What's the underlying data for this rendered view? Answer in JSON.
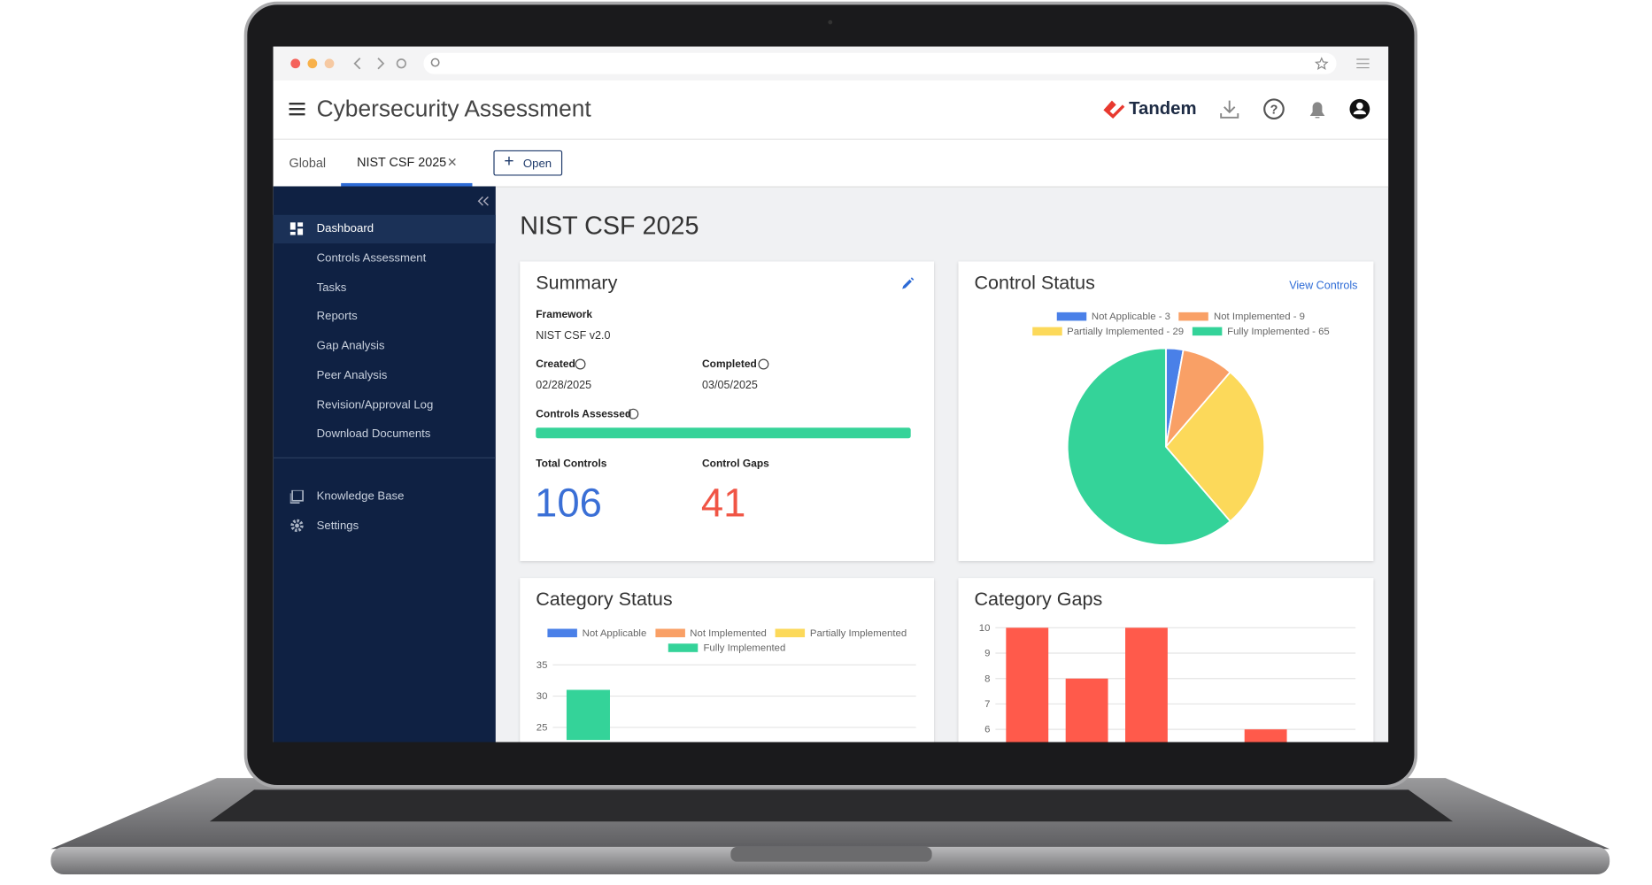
{
  "header": {
    "title": "Cybersecurity Assessment",
    "brand": "Tandem"
  },
  "tabs": {
    "items": [
      "Global",
      "NIST CSF 2025"
    ],
    "open_button": "Open"
  },
  "sidebar": {
    "items": [
      "Dashboard",
      "Controls Assessment",
      "Tasks",
      "Reports",
      "Gap Analysis",
      "Peer Analysis",
      "Revision/Approval Log",
      "Download Documents"
    ],
    "footer_items": [
      "Knowledge Base",
      "Settings"
    ]
  },
  "page_title": "NIST CSF 2025",
  "summary": {
    "title": "Summary",
    "framework_label": "Framework",
    "framework": "NIST CSF v2.0",
    "created_label": "Created",
    "created": "02/28/2025",
    "completed_label": "Completed",
    "completed": "03/05/2025",
    "controls_assessed_label": "Controls Assessed",
    "total_controls_label": "Total Controls",
    "total_controls": 106,
    "control_gaps_label": "Control Gaps",
    "control_gaps": 41
  },
  "chart_data": [
    {
      "type": "pie",
      "title": "Control Status",
      "link": "View Controls",
      "values": [
        3,
        9,
        29,
        65
      ],
      "value_labels": [
        "Not Applicable - 3",
        "Not Implemented - 9",
        "Partially Implemented - 29",
        "Fully Implemented - 65"
      ],
      "colors": [
        "#4a80e8",
        "#f9a066",
        "#fcd95a",
        "#34d399"
      ]
    },
    {
      "type": "bar",
      "title": "Category Status",
      "categories": [
        null
      ],
      "series": [
        {
          "name": "Not Applicable",
          "color": "#4a80e8",
          "values": [
            null
          ]
        },
        {
          "name": "Not Implemented",
          "color": "#f9a066",
          "values": [
            null
          ]
        },
        {
          "name": "Partially Implemented",
          "color": "#fcd95a",
          "values": [
            null
          ]
        },
        {
          "name": "Fully Implemented",
          "color": "#34d399",
          "values": [
            31
          ]
        }
      ],
      "ylim": [
        23,
        35
      ],
      "yticks": [
        25,
        30,
        35
      ],
      "grid": true
    },
    {
      "type": "bar",
      "title": "Category Gaps",
      "categories": [
        null,
        null,
        null,
        null,
        null
      ],
      "values": [
        10,
        8,
        10,
        null,
        6
      ],
      "color": "#ff5a4b",
      "ylim": [
        5.5,
        10
      ],
      "yticks": [
        6,
        7,
        8,
        9,
        10
      ],
      "grid": true
    }
  ]
}
